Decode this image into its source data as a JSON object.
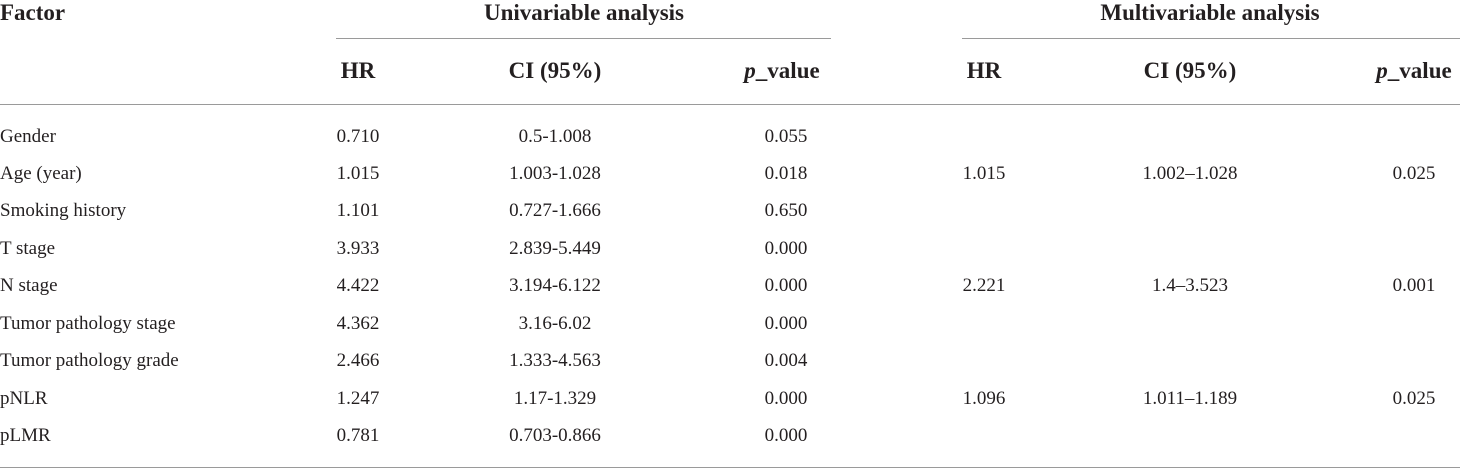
{
  "table": {
    "header": {
      "factor": "Factor",
      "univariable": "Univariable analysis",
      "multivariable": "Multivariable analysis",
      "hr": "HR",
      "ci": "CI (95%)",
      "p_italic": "p",
      "p_rest": "_value"
    },
    "rows": [
      {
        "factor": "Gender",
        "u_hr": "0.710",
        "u_ci": "0.5-1.008",
        "u_p": "0.055",
        "m_hr": "",
        "m_ci": "",
        "m_p": ""
      },
      {
        "factor": "Age (year)",
        "u_hr": "1.015",
        "u_ci": "1.003-1.028",
        "u_p": "0.018",
        "m_hr": "1.015",
        "m_ci": "1.002–1.028",
        "m_p": "0.025"
      },
      {
        "factor": "Smoking history",
        "u_hr": "1.101",
        "u_ci": "0.727-1.666",
        "u_p": "0.650",
        "m_hr": "",
        "m_ci": "",
        "m_p": ""
      },
      {
        "factor": "T stage",
        "u_hr": "3.933",
        "u_ci": "2.839-5.449",
        "u_p": "0.000",
        "m_hr": "",
        "m_ci": "",
        "m_p": ""
      },
      {
        "factor": "N stage",
        "u_hr": "4.422",
        "u_ci": "3.194-6.122",
        "u_p": "0.000",
        "m_hr": "2.221",
        "m_ci": "1.4–3.523",
        "m_p": "0.001"
      },
      {
        "factor": "Tumor pathology stage",
        "u_hr": "4.362",
        "u_ci": "3.16-6.02",
        "u_p": "0.000",
        "m_hr": "",
        "m_ci": "",
        "m_p": ""
      },
      {
        "factor": "Tumor pathology grade",
        "u_hr": "2.466",
        "u_ci": "1.333-4.563",
        "u_p": "0.004",
        "m_hr": "",
        "m_ci": "",
        "m_p": ""
      },
      {
        "factor": "pNLR",
        "u_hr": "1.247",
        "u_ci": "1.17-1.329",
        "u_p": "0.000",
        "m_hr": "1.096",
        "m_ci": "1.011–1.189",
        "m_p": "0.025"
      },
      {
        "factor": "pLMR",
        "u_hr": "0.781",
        "u_ci": "0.703-0.866",
        "u_p": "0.000",
        "m_hr": "",
        "m_ci": "",
        "m_p": ""
      }
    ]
  }
}
